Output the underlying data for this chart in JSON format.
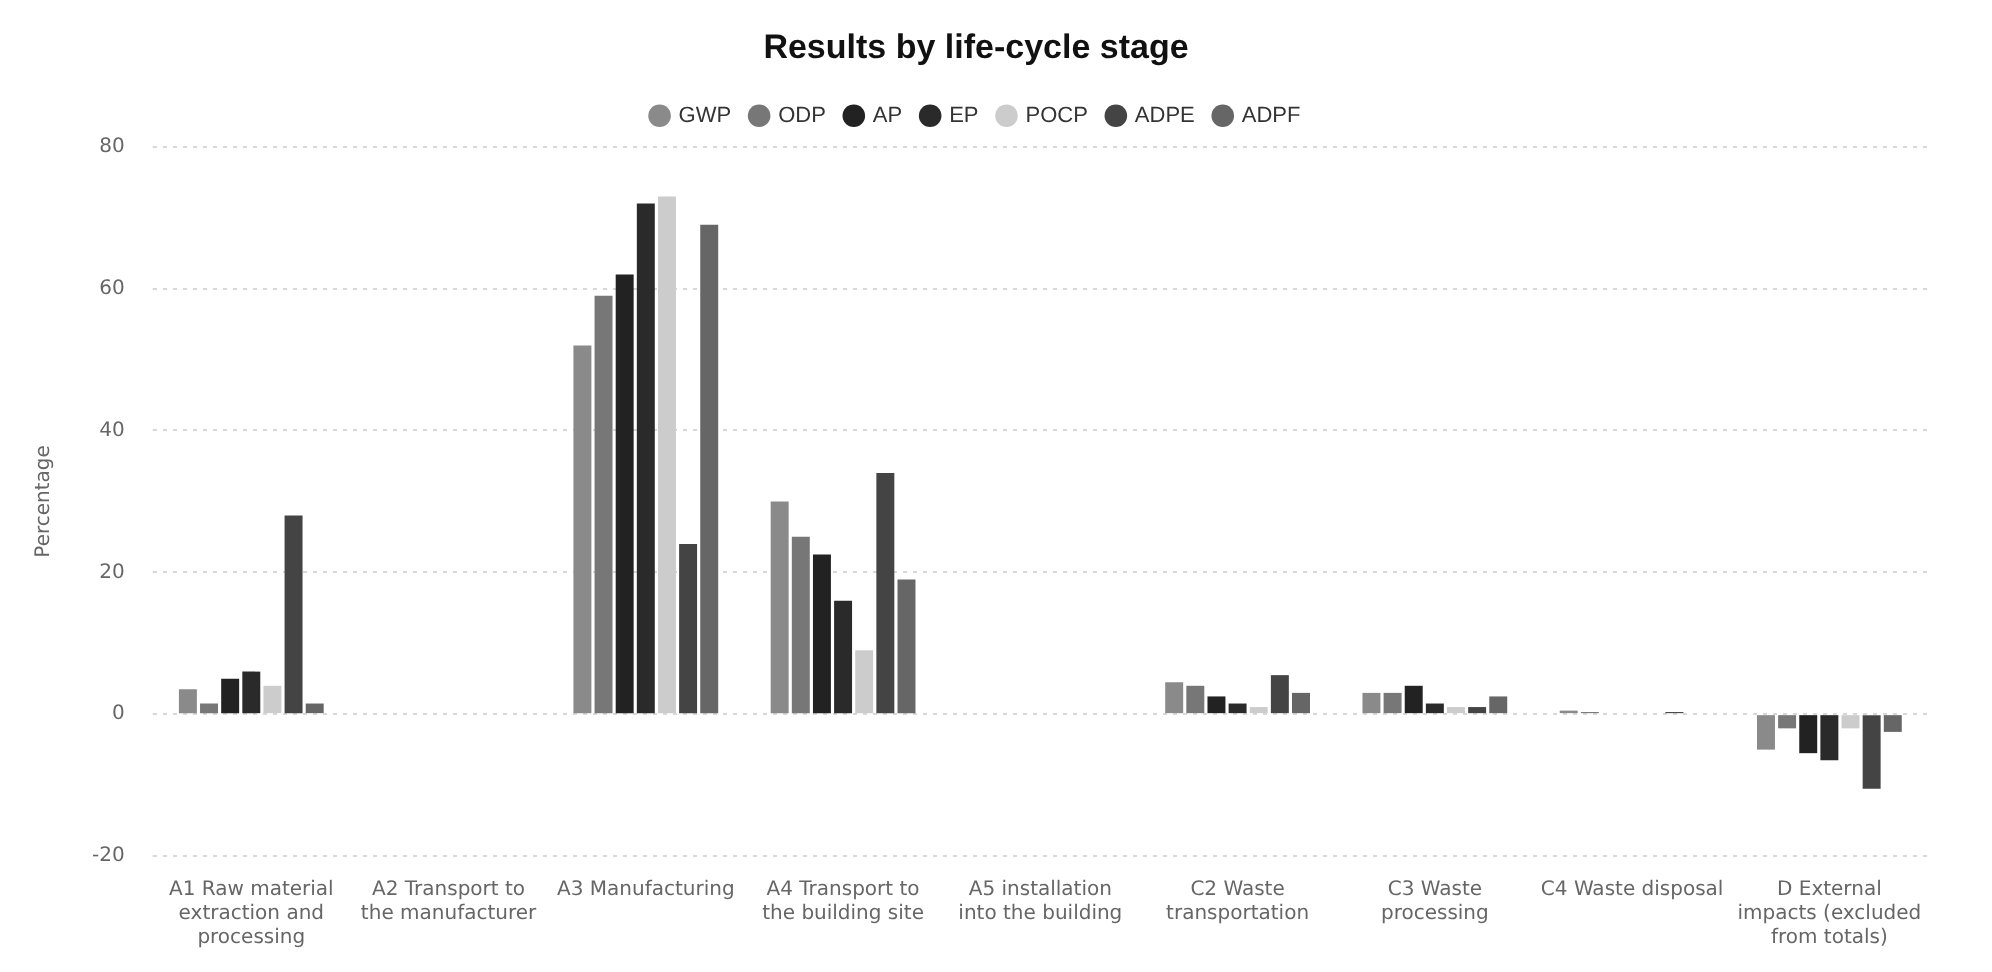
{
  "chart_data": {
    "type": "bar",
    "title": "Results by life-cycle stage",
    "ylabel": "Percentage",
    "categories": [
      "A1 Raw material extraction and processing",
      "A2 Transport to the manufacturer",
      "A3 Manufacturing",
      "A4 Transport to the building site",
      "A5 installation into the building",
      "C2 Waste transportation",
      "C3 Waste processing",
      "C4 Waste disposal",
      "D External impacts (excluded from totals)"
    ],
    "series": [
      {
        "name": "GWP",
        "color": "#8a8a8a",
        "values": [
          3.5,
          0,
          52,
          30,
          0,
          4.5,
          3,
          0.5,
          -5
        ]
      },
      {
        "name": "ODP",
        "color": "#777777",
        "values": [
          1.5,
          0,
          59,
          25,
          0,
          4,
          3,
          0.3,
          -2
        ]
      },
      {
        "name": "AP",
        "color": "#222222",
        "values": [
          5,
          0,
          62,
          22.5,
          0,
          2.5,
          4,
          0,
          -5.5
        ]
      },
      {
        "name": "EP",
        "color": "#2a2a2a",
        "values": [
          6,
          0,
          72,
          16,
          0,
          1.5,
          1.5,
          0,
          -6.5
        ]
      },
      {
        "name": "POCP",
        "color": "#cccccc",
        "values": [
          4,
          0,
          73,
          9,
          0,
          1,
          1,
          0,
          -2
        ]
      },
      {
        "name": "ADPE",
        "color": "#444444",
        "values": [
          28,
          0,
          24,
          34,
          0,
          5.5,
          1,
          0.3,
          -10.5
        ]
      },
      {
        "name": "ADPF",
        "color": "#666666",
        "values": [
          1.5,
          0,
          69,
          19,
          0,
          3,
          2.5,
          0,
          -2.5
        ]
      }
    ],
    "ylim": [
      -20,
      80
    ],
    "yticks": [
      -20,
      0,
      20,
      40,
      60,
      80
    ],
    "grid": "y",
    "legend": "top",
    "marker": "circle"
  }
}
